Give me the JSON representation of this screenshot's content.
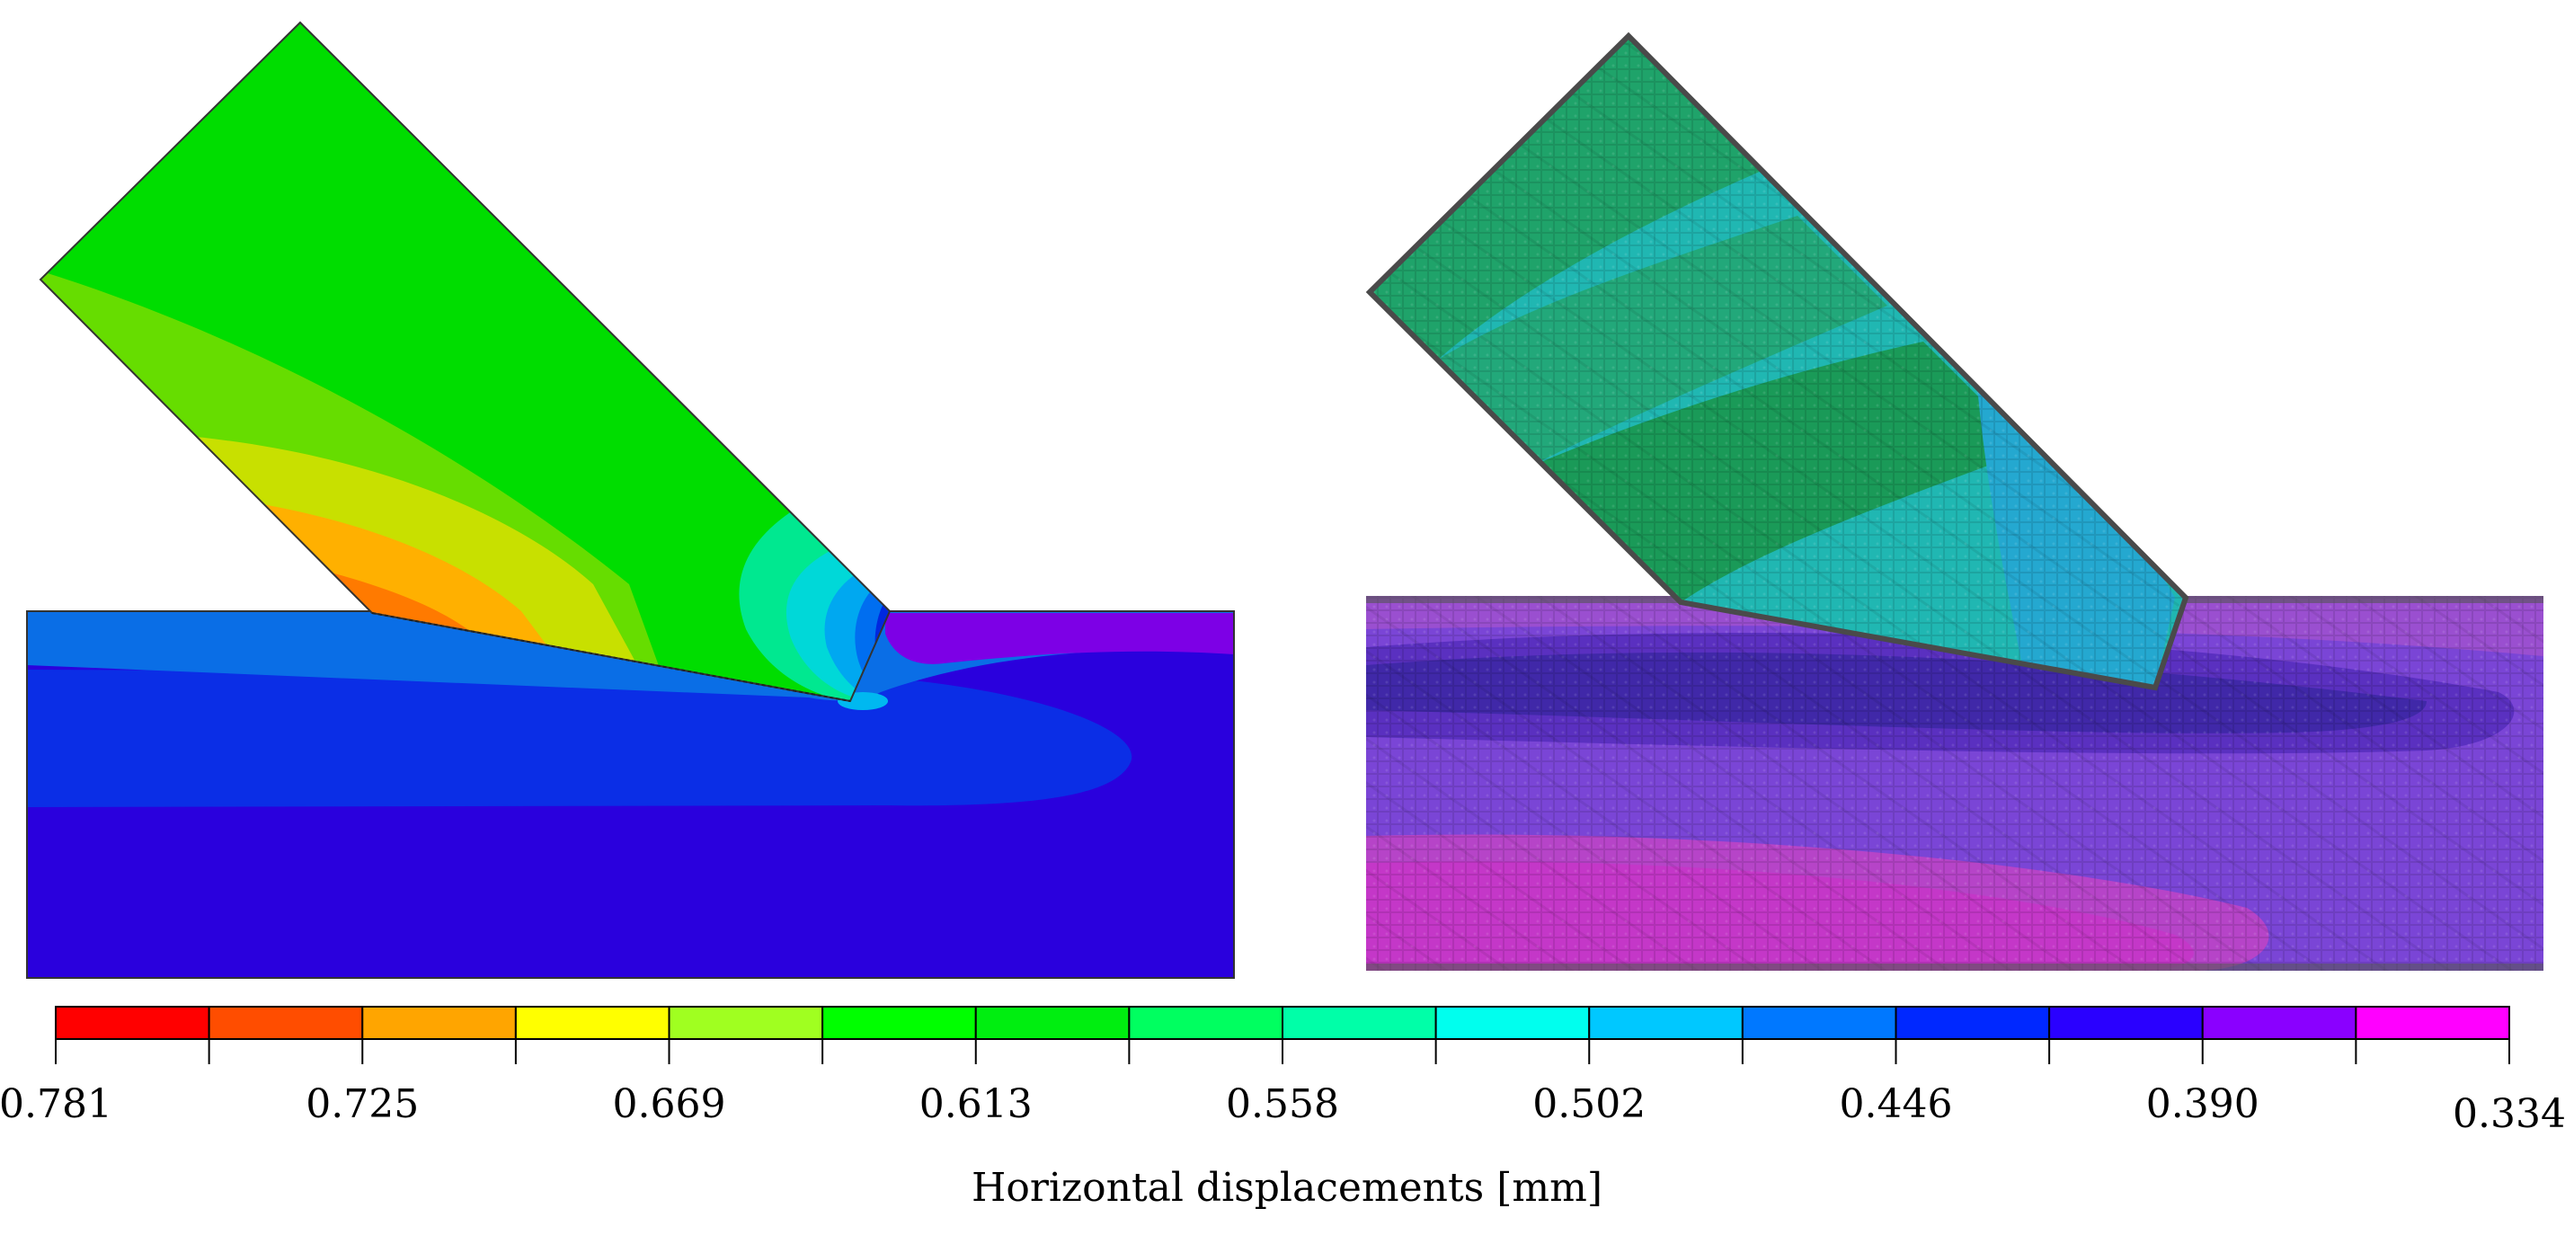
{
  "legend": {
    "title": "Horizontal displacements [mm]",
    "tick_labels": [
      "0.781",
      "0.725",
      "0.669",
      "0.613",
      "0.558",
      "0.502",
      "0.446",
      "0.390",
      "0.334"
    ],
    "colors": [
      "#ff0000",
      "#ff4d00",
      "#ffa500",
      "#ffff00",
      "#a0ff20",
      "#00ff00",
      "#00ee10",
      "#00ff60",
      "#00ffa8",
      "#00ffee",
      "#00c8ff",
      "#0078ff",
      "#0028ff",
      "#2a00ff",
      "#8a00ff",
      "#ff00ff"
    ]
  },
  "palette": {
    "fem_green": "#00dd00",
    "fem_blue_dark": "#2a00dd",
    "fem_blue_mid": "#0b2ee6",
    "fem_blue_light": "#0a6ee6",
    "fem_purple": "#7d00e6",
    "dic_green": "#1fa36a",
    "dic_cyan": "#20b7b2",
    "dic_purple": "#7a45d6",
    "dic_magenta": "#c437c8"
  }
}
